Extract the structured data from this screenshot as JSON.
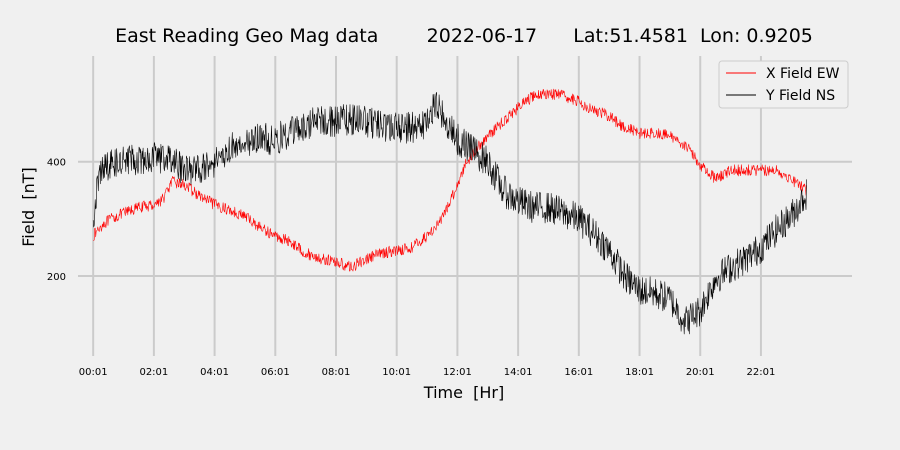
{
  "chart_data": {
    "type": "line",
    "title": "East Reading Geo Mag data        2022-06-17      Lat:51.4581  Lon: 0.9205",
    "xlabel": "Time  [Hr]",
    "ylabel": "Field  [nT]",
    "x_unit": "hours",
    "xlim": [
      -0.5,
      25.0
    ],
    "ylim": [
      60,
      585
    ],
    "x_ticks": [
      {
        "value": 0,
        "label": "00:01"
      },
      {
        "value": 2,
        "label": "02:01"
      },
      {
        "value": 4,
        "label": "04:01"
      },
      {
        "value": 6,
        "label": "06:01"
      },
      {
        "value": 8,
        "label": "08:01"
      },
      {
        "value": 10,
        "label": "10:01"
      },
      {
        "value": 12,
        "label": "12:01"
      },
      {
        "value": 14,
        "label": "14:01"
      },
      {
        "value": 16,
        "label": "16:01"
      },
      {
        "value": 18,
        "label": "18:01"
      },
      {
        "value": 20,
        "label": "20:01"
      },
      {
        "value": 22,
        "label": "22:01"
      }
    ],
    "y_ticks": [
      {
        "value": 200,
        "label": "200"
      },
      {
        "value": 400,
        "label": "400"
      }
    ],
    "grid": true,
    "legend_position": "top-right",
    "series": [
      {
        "name": "X Field EW",
        "color": "#ff0000",
        "x": [
          0,
          0.3,
          0.6,
          1,
          1.5,
          2,
          2.3,
          2.6,
          3,
          3.5,
          4,
          4.5,
          5,
          5.5,
          6,
          6.5,
          7,
          7.5,
          8,
          8.5,
          9,
          9.5,
          10,
          10.5,
          11,
          11.5,
          12,
          12.3,
          12.6,
          13,
          13.5,
          14,
          14.5,
          15,
          15.5,
          16,
          16.5,
          17,
          17.5,
          18,
          18.5,
          19,
          19.5,
          20,
          20.5,
          21,
          21.5,
          22,
          22.5,
          23,
          23.5
        ],
        "values": [
          270,
          290,
          300,
          310,
          320,
          325,
          335,
          365,
          360,
          340,
          325,
          315,
          305,
          285,
          270,
          260,
          240,
          230,
          225,
          215,
          230,
          240,
          245,
          250,
          270,
          300,
          360,
          400,
          420,
          445,
          470,
          495,
          515,
          520,
          515,
          505,
          490,
          480,
          460,
          450,
          450,
          445,
          430,
          395,
          370,
          385,
          385,
          385,
          385,
          370,
          350
        ],
        "noise": 10
      },
      {
        "name": "Y Field NS",
        "color": "#000000",
        "x": [
          0,
          0.15,
          0.3,
          0.6,
          1,
          1.5,
          2,
          2.5,
          3,
          3.5,
          4,
          4.5,
          5,
          5.5,
          6,
          6.5,
          7,
          7.5,
          8,
          8.5,
          9,
          9.5,
          10,
          10.5,
          11,
          11.3,
          11.6,
          12,
          12.5,
          13,
          13.5,
          14,
          14.5,
          15,
          15.5,
          16,
          16.5,
          17,
          17.5,
          18,
          18.5,
          19,
          19.5,
          20,
          20.5,
          21,
          21.5,
          22,
          22.5,
          23,
          23.5
        ],
        "values": [
          300,
          360,
          390,
          395,
          400,
          405,
          410,
          405,
          385,
          385,
          400,
          425,
          435,
          440,
          440,
          450,
          465,
          470,
          470,
          475,
          470,
          460,
          460,
          460,
          470,
          500,
          470,
          440,
          420,
          400,
          350,
          330,
          320,
          320,
          310,
          300,
          275,
          245,
          200,
          175,
          170,
          160,
          120,
          140,
          195,
          215,
          230,
          250,
          280,
          305,
          345
        ],
        "noise": 28
      }
    ]
  }
}
